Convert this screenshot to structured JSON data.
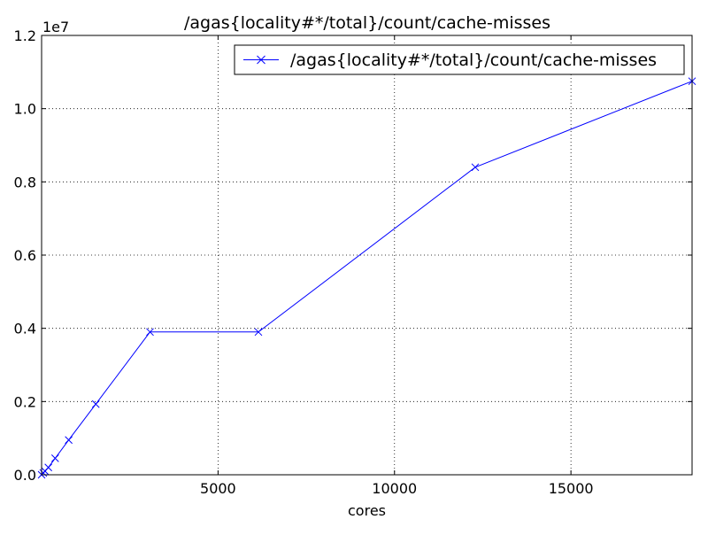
{
  "chart_data": {
    "type": "line",
    "title": "/agas{locality#*/total}/count/cache-misses",
    "xlabel": "cores",
    "ylabel": "",
    "y_offset_label": "1e7",
    "xlim": [
      0,
      18432
    ],
    "ylim": [
      0,
      12000000
    ],
    "x_ticks": [
      {
        "value": 5000,
        "label": "5000"
      },
      {
        "value": 10000,
        "label": "10000"
      },
      {
        "value": 15000,
        "label": "15000"
      }
    ],
    "y_ticks": [
      {
        "value": 0,
        "label": "0.0"
      },
      {
        "value": 2000000,
        "label": "0.2"
      },
      {
        "value": 4000000,
        "label": "0.4"
      },
      {
        "value": 6000000,
        "label": "0.6"
      },
      {
        "value": 8000000,
        "label": "0.8"
      },
      {
        "value": 10000000,
        "label": "1.0"
      },
      {
        "value": 12000000,
        "label": "1.2"
      }
    ],
    "grid": true,
    "legend_position": "top-right",
    "series": [
      {
        "name": "/agas{locality#*/total}/count/cache-misses",
        "color": "#0000ff",
        "marker": "x",
        "x": [
          0,
          48,
          96,
          192,
          384,
          768,
          1536,
          3072,
          6144,
          12288,
          18432
        ],
        "y": [
          0,
          50000,
          100000,
          200000,
          450000,
          950000,
          1930000,
          3900000,
          3900000,
          8400000,
          10750000
        ]
      }
    ]
  }
}
